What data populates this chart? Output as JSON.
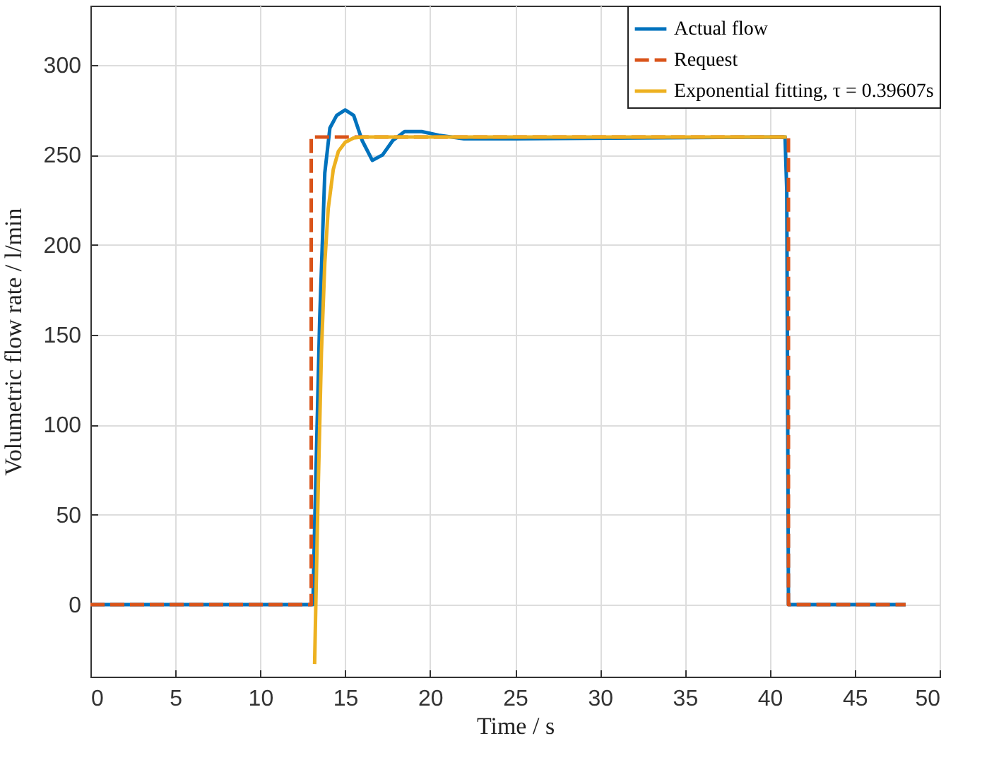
{
  "chart_data": {
    "type": "line",
    "xlabel": "Time / s",
    "ylabel": "Volumetric flow rate / l/min",
    "xlim": [
      0,
      50
    ],
    "ylim": [
      -40,
      333
    ],
    "xticks": [
      0,
      5,
      10,
      15,
      20,
      25,
      30,
      35,
      40,
      45,
      50
    ],
    "yticks": [
      0,
      50,
      100,
      150,
      200,
      250,
      300
    ],
    "grid": true,
    "legend": "top right",
    "series": [
      {
        "name": "Actual flow",
        "color": "#0072bd",
        "line_style": "solid",
        "x": [
          0,
          13.1,
          13.2,
          13.5,
          13.8,
          14.1,
          14.5,
          15.0,
          15.5,
          16.0,
          16.6,
          17.2,
          17.8,
          18.5,
          19.5,
          20.5,
          22,
          25,
          40.9,
          41.0,
          41.1,
          48
        ],
        "values": [
          0,
          0,
          43,
          159,
          240,
          265,
          272,
          275,
          272,
          258,
          247,
          250,
          258,
          263,
          263,
          261,
          259,
          259,
          260,
          230,
          0,
          0
        ]
      },
      {
        "name": "Request",
        "color": "#d95319",
        "line_style": "dashed",
        "x": [
          0,
          13,
          13,
          41.1,
          41.1,
          48
        ],
        "values": [
          0,
          0,
          260,
          260,
          0,
          0
        ]
      },
      {
        "name": "Exponential fitting, τ = 0.39607s",
        "color": "#edb120",
        "line_style": "solid",
        "x": [
          13.2,
          13.4,
          13.6,
          13.8,
          14.0,
          14.3,
          14.6,
          15.0,
          15.5,
          16.0,
          20,
          30,
          41
        ],
        "values": [
          -33,
          60,
          140,
          190,
          220,
          242,
          252,
          257,
          259.5,
          260,
          260,
          260,
          260
        ]
      }
    ]
  }
}
